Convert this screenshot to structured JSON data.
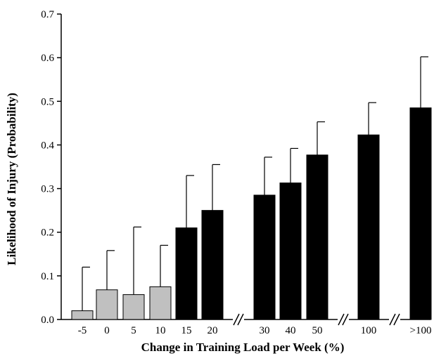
{
  "chart_data": {
    "type": "bar",
    "title": "",
    "xlabel": "Change in Training Load per Week (%)",
    "ylabel": "Likelihood of Injury (Probability)",
    "ylim": [
      0,
      0.7
    ],
    "yticks": [
      "0.0",
      "0.1",
      "0.2",
      "0.3",
      "0.4",
      "0.5",
      "0.6",
      "0.7"
    ],
    "categories": [
      "-5",
      "0",
      "5",
      "10",
      "15",
      "20",
      "30",
      "40",
      "50",
      "100",
      ">100"
    ],
    "values": [
      0.02,
      0.068,
      0.057,
      0.075,
      0.21,
      0.25,
      0.285,
      0.313,
      0.377,
      0.423,
      0.485
    ],
    "error_upper": [
      0.12,
      0.158,
      0.212,
      0.17,
      0.33,
      0.355,
      0.372,
      0.392,
      0.453,
      0.497,
      0.602
    ],
    "bar_colors": [
      "#c0c0c0",
      "#c0c0c0",
      "#c0c0c0",
      "#c0c0c0",
      "#000000",
      "#000000",
      "#000000",
      "#000000",
      "#000000",
      "#000000",
      "#000000"
    ],
    "axis_breaks_after": [
      "20",
      "50",
      "100"
    ],
    "grid": false,
    "legend": "none"
  }
}
